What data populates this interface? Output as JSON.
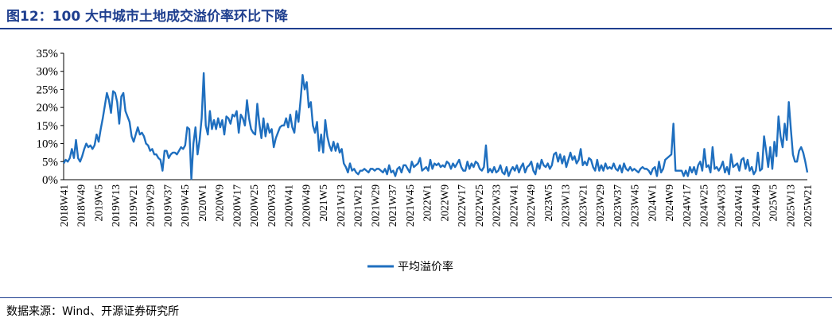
{
  "header": {
    "title": "图12：100 大中城市土地成交溢价率环比下降"
  },
  "footer": {
    "source": "数据来源：Wind、开源证券研究所"
  },
  "chart_data": {
    "type": "line",
    "title": "图12：100 大中城市土地成交溢价率环比下降",
    "xlabel": "",
    "ylabel": "",
    "y_tick_labels": [
      "0%",
      "5%",
      "10%",
      "15%",
      "20%",
      "25%",
      "30%",
      "35%"
    ],
    "ylim": [
      0,
      35
    ],
    "x_tick_labels": [
      "2018W41",
      "2018W49",
      "2019W5",
      "2019W13",
      "2019W21",
      "2019W29",
      "2019W37",
      "2019W45",
      "2020W1",
      "2020W9",
      "2020W17",
      "2020W25",
      "2020W33",
      "2020W41",
      "2020W49",
      "2021W5",
      "2021W13",
      "2021W21",
      "2021W29",
      "2021W37",
      "2021W45",
      "2022W1",
      "2022W9",
      "2022W17",
      "2022W25",
      "2022W33",
      "2022W41",
      "2022W49",
      "2023W5",
      "2023W13",
      "2023W21",
      "2023W29",
      "2023W37",
      "2023W45",
      "2024W1",
      "2024W9",
      "2024W17",
      "2024W25",
      "2024W33",
      "2024W41",
      "2024W49",
      "2025W5",
      "2025W13",
      "2025W21"
    ],
    "legend_position": "bottom-center",
    "grid": false,
    "colors": {
      "line": "#1f6fbf"
    },
    "series": [
      {
        "name": "平均溢价率",
        "values": [
          4.5,
          5.5,
          5.0,
          6.0,
          8.5,
          6.0,
          11.0,
          6.0,
          5.0,
          6.5,
          8.5,
          10.0,
          9.0,
          9.5,
          8.5,
          9.5,
          12.5,
          10.5,
          14.0,
          17.0,
          20.5,
          24.0,
          22.0,
          18.5,
          24.5,
          24.0,
          21.5,
          15.5,
          23.0,
          24.0,
          19.0,
          17.5,
          16.0,
          12.0,
          10.5,
          12.5,
          14.5,
          12.5,
          13.0,
          12.0,
          10.0,
          9.5,
          8.0,
          8.5,
          7.0,
          7.0,
          6.0,
          5.5,
          2.5,
          8.0,
          8.0,
          6.0,
          7.0,
          7.5,
          7.5,
          7.0,
          8.0,
          9.0,
          8.5,
          9.5,
          14.5,
          14.0,
          0.2,
          10.0,
          14.5,
          7.0,
          11.0,
          17.0,
          29.5,
          15.0,
          12.5,
          19.0,
          14.0,
          16.5,
          14.0,
          17.0,
          14.5,
          16.5,
          12.5,
          17.5,
          17.0,
          15.5,
          18.0,
          17.5,
          19.0,
          13.0,
          18.0,
          17.0,
          15.0,
          22.0,
          17.0,
          14.0,
          13.0,
          12.5,
          21.0,
          15.5,
          11.5,
          17.0,
          12.0,
          15.5,
          13.0,
          14.0,
          9.0,
          11.5,
          13.0,
          14.5,
          15.0,
          15.0,
          17.0,
          14.5,
          18.0,
          14.5,
          13.0,
          19.0,
          16.0,
          22.0,
          29.0,
          25.0,
          27.0,
          20.0,
          21.5,
          15.0,
          13.0,
          16.0,
          8.0,
          12.5,
          7.5,
          16.5,
          12.0,
          9.5,
          8.0,
          10.5,
          8.0,
          10.0,
          7.5,
          8.5,
          4.5,
          3.5,
          2.0,
          4.5,
          2.5,
          3.0,
          2.0,
          1.5,
          2.5,
          2.5,
          3.0,
          2.5,
          2.0,
          3.0,
          3.0,
          2.5,
          3.0,
          3.0,
          2.5,
          2.0,
          3.0,
          1.5,
          4.0,
          2.0,
          2.5,
          1.0,
          3.0,
          3.5,
          2.0,
          4.0,
          4.0,
          3.0,
          2.0,
          5.0,
          3.5,
          4.0,
          4.5,
          6.0,
          2.5,
          3.0,
          3.5,
          2.5,
          5.5,
          3.0,
          4.5,
          4.0,
          4.5,
          3.5,
          4.0,
          3.5,
          5.0,
          4.5,
          3.0,
          4.5,
          3.5,
          4.5,
          5.5,
          3.5,
          2.5,
          2.5,
          5.0,
          3.0,
          4.5,
          3.5,
          5.0,
          4.5,
          3.0,
          2.5,
          3.5,
          9.5,
          2.0,
          3.0,
          2.0,
          3.5,
          2.0,
          2.5,
          4.0,
          2.0,
          1.5,
          3.5,
          1.0,
          2.5,
          3.5,
          2.5,
          4.0,
          2.0,
          3.5,
          4.5,
          2.0,
          3.5,
          4.0,
          5.0,
          2.5,
          1.5,
          4.5,
          3.0,
          5.5,
          4.0,
          3.5,
          4.5,
          3.0,
          4.0,
          7.0,
          7.5,
          5.0,
          7.0,
          4.5,
          6.5,
          3.5,
          5.5,
          7.5,
          5.5,
          6.5,
          4.5,
          5.5,
          8.5,
          4.0,
          5.0,
          4.0,
          6.0,
          5.5,
          3.5,
          2.5,
          5.5,
          2.5,
          4.0,
          2.5,
          4.5,
          3.0,
          3.5,
          3.0,
          4.5,
          3.0,
          2.5,
          4.0,
          2.0,
          4.5,
          3.0,
          2.5,
          3.5,
          2.5,
          3.0,
          2.5,
          2.0,
          3.0,
          3.5,
          3.0,
          3.0,
          2.5,
          1.5,
          3.0,
          3.5,
          1.0,
          5.0,
          2.0,
          3.0,
          5.5,
          6.0,
          6.5,
          7.0,
          15.5,
          2.5,
          2.5,
          2.5,
          2.5,
          1.0,
          2.5,
          1.0,
          3.5,
          2.0,
          3.5,
          1.5,
          4.0,
          5.0,
          2.5,
          8.5,
          3.5,
          4.0,
          2.0,
          9.0,
          3.0,
          3.5,
          2.5,
          3.5,
          5.0,
          2.0,
          3.5,
          1.5,
          7.0,
          3.5,
          4.0,
          4.5,
          2.5,
          5.5,
          6.0,
          3.0,
          5.5,
          2.5,
          3.5,
          1.5,
          2.5,
          7.5,
          2.5,
          3.0,
          12.0,
          8.0,
          3.5,
          9.0,
          3.0,
          10.5,
          6.5,
          17.5,
          12.0,
          9.0,
          15.5,
          11.0,
          21.5,
          14.0,
          7.0,
          5.0,
          5.0,
          8.0,
          9.0,
          7.5,
          5.0,
          2.0
        ]
      }
    ]
  }
}
